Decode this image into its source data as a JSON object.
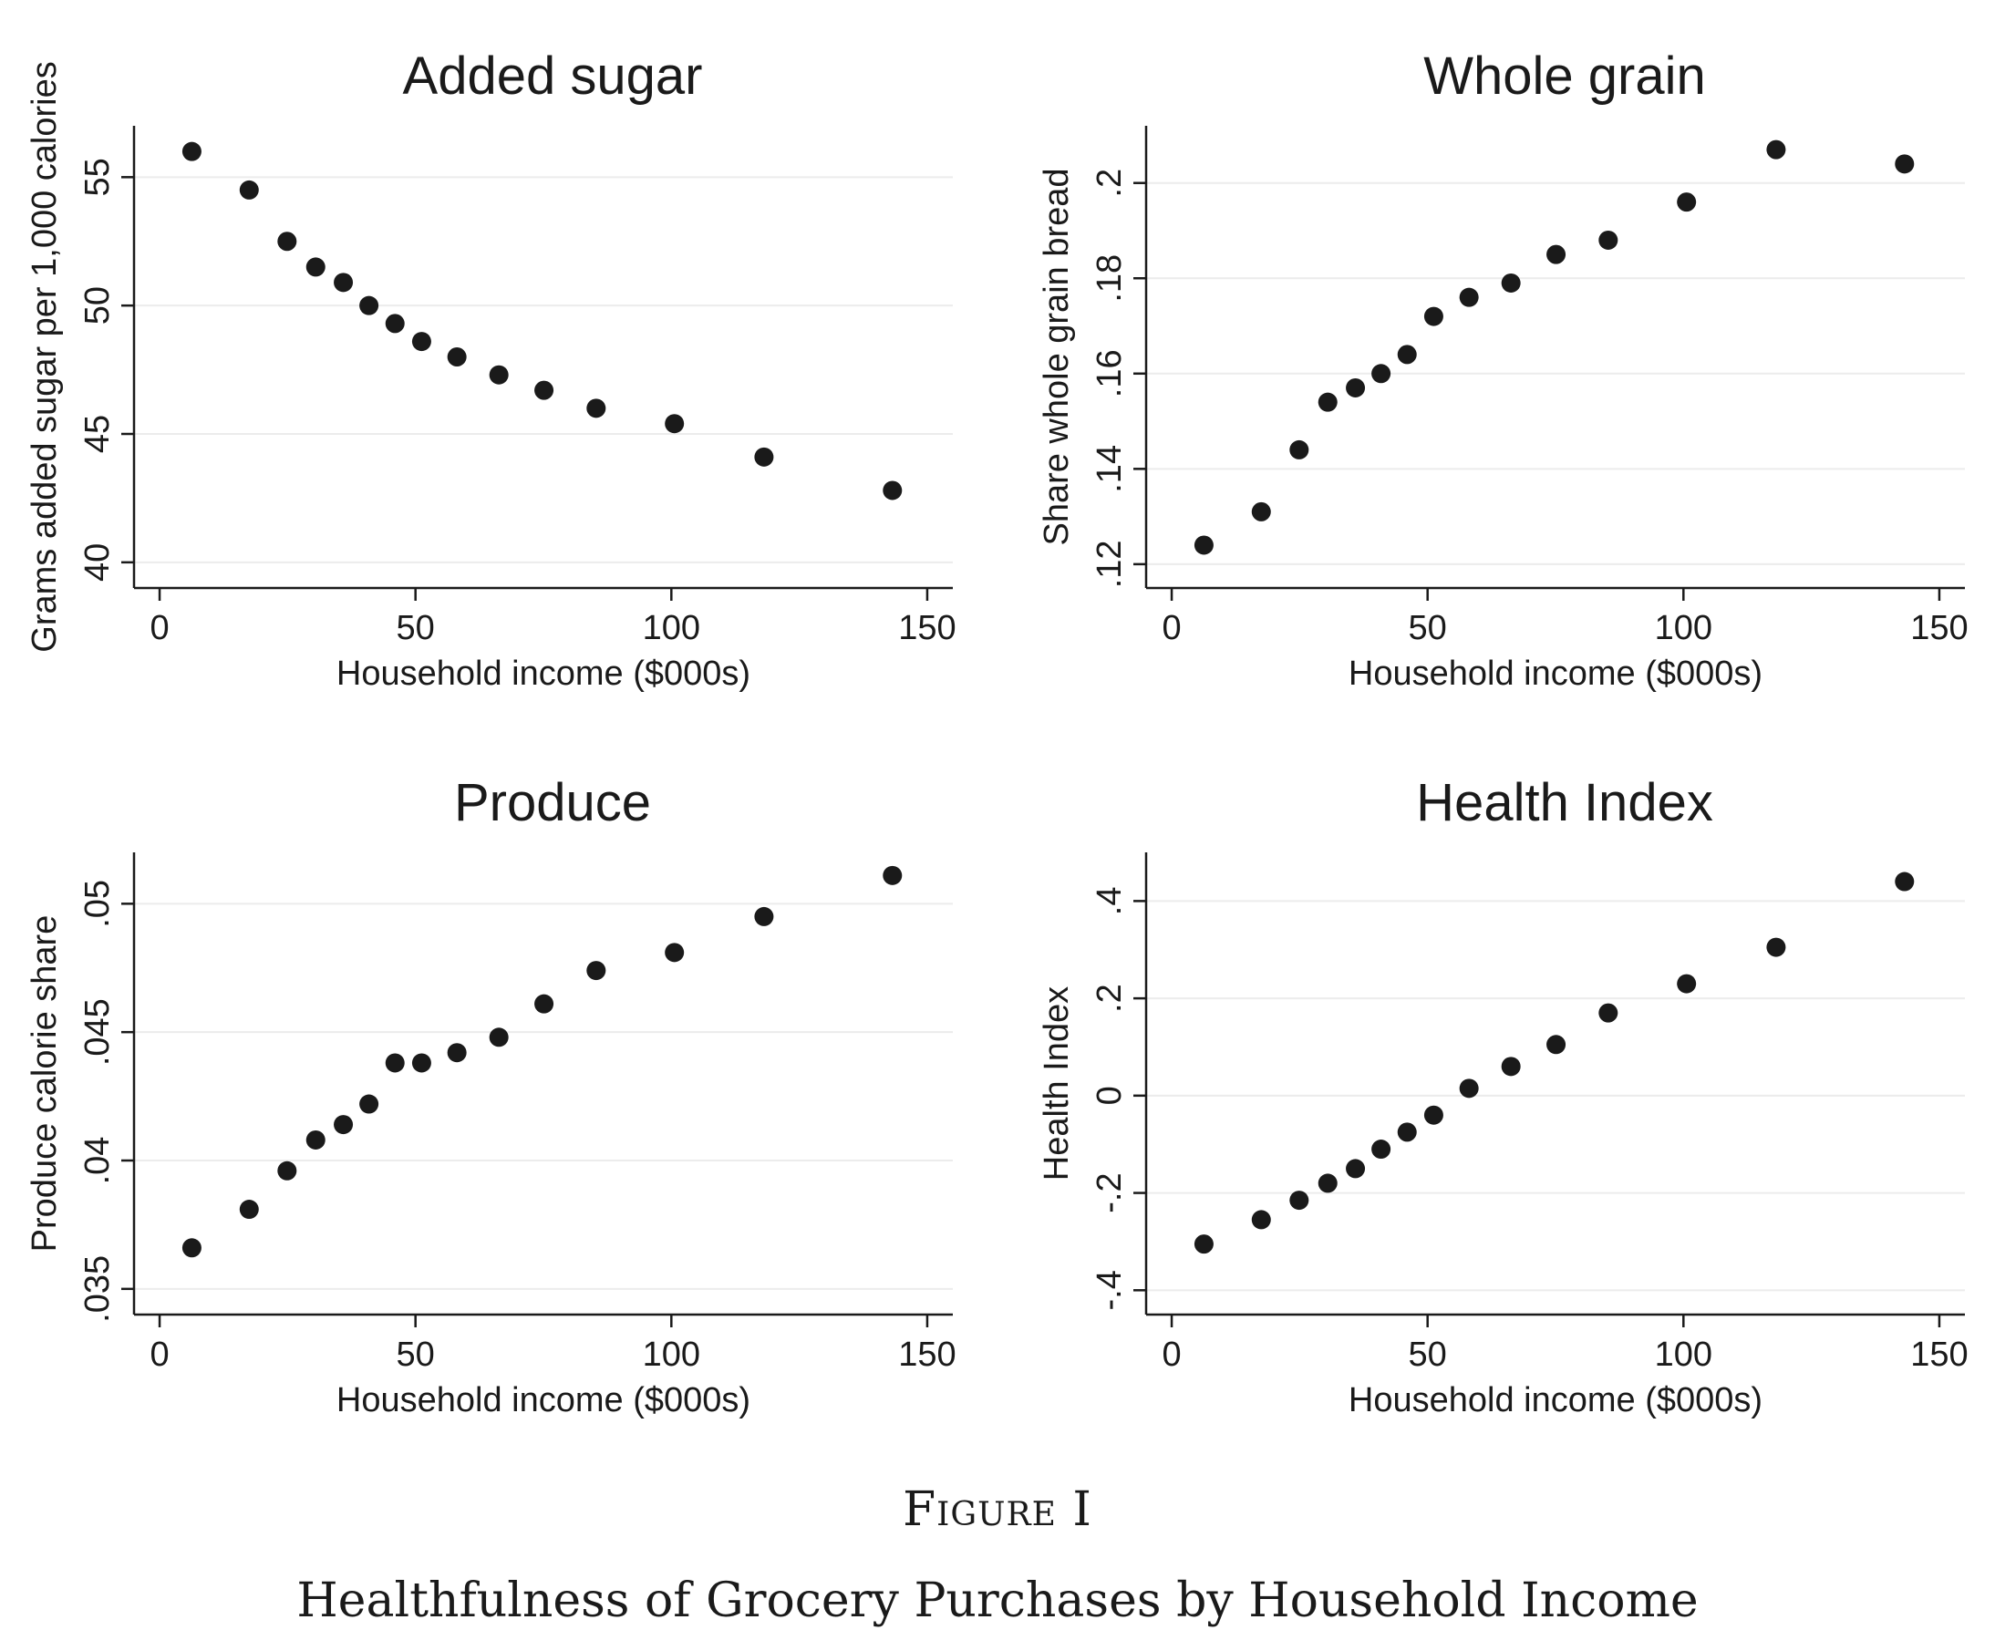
{
  "figure": {
    "label": "Figure I",
    "title": "Healthfulness of Grocery Purchases by Household Income"
  },
  "colors": {
    "marker": "#1a1a1a",
    "axis": "#1a1a1a",
    "grid": "#ececec",
    "text": "#1a1a1a"
  },
  "chart_data": [
    {
      "type": "scatter",
      "title": "Added sugar",
      "xlabel": "Household income ($000s)",
      "ylabel": "Grams added sugar per 1,000 calories",
      "xlim": [
        -5,
        155
      ],
      "ylim": [
        39,
        57
      ],
      "xticks": [
        0,
        50,
        100,
        150
      ],
      "xtick_labels": [
        "0",
        "50",
        "100",
        "150"
      ],
      "yticks": [
        40,
        45,
        50,
        55
      ],
      "ytick_labels": [
        "40",
        "45",
        "50",
        "55"
      ],
      "grid": true,
      "x": [
        6.3,
        17.5,
        24.9,
        30.5,
        35.9,
        40.9,
        46.0,
        51.2,
        58.1,
        66.3,
        75.1,
        85.3,
        100.6,
        118.1,
        143.2
      ],
      "y": [
        56.0,
        54.5,
        52.5,
        51.5,
        50.9,
        50.0,
        49.3,
        48.6,
        48.0,
        47.3,
        46.7,
        46.0,
        45.4,
        44.1,
        42.8
      ]
    },
    {
      "type": "scatter",
      "title": "Whole grain",
      "xlabel": "Household income ($000s)",
      "ylabel": "Share whole grain bread",
      "xlim": [
        -5,
        155
      ],
      "ylim": [
        0.115,
        0.212
      ],
      "xticks": [
        0,
        50,
        100,
        150
      ],
      "xtick_labels": [
        "0",
        "50",
        "100",
        "150"
      ],
      "yticks": [
        0.12,
        0.14,
        0.16,
        0.18,
        0.2
      ],
      "ytick_labels": [
        ".12",
        ".14",
        ".16",
        ".18",
        ".2"
      ],
      "grid": true,
      "x": [
        6.3,
        17.5,
        24.9,
        30.5,
        35.9,
        40.9,
        46.0,
        51.2,
        58.1,
        66.3,
        75.1,
        85.3,
        100.6,
        118.1,
        143.2
      ],
      "y": [
        0.124,
        0.131,
        0.144,
        0.154,
        0.157,
        0.16,
        0.164,
        0.172,
        0.176,
        0.179,
        0.185,
        0.188,
        0.196,
        0.207,
        0.204
      ]
    },
    {
      "type": "scatter",
      "title": "Produce",
      "xlabel": "Household income ($000s)",
      "ylabel": "Produce calorie share",
      "xlim": [
        -5,
        155
      ],
      "ylim": [
        0.034,
        0.052
      ],
      "xticks": [
        0,
        50,
        100,
        150
      ],
      "xtick_labels": [
        "0",
        "50",
        "100",
        "150"
      ],
      "yticks": [
        0.035,
        0.04,
        0.045,
        0.05
      ],
      "ytick_labels": [
        ".035",
        ".04",
        ".045",
        ".05"
      ],
      "grid": true,
      "x": [
        6.3,
        17.5,
        24.9,
        30.5,
        35.9,
        40.9,
        46.0,
        51.2,
        58.1,
        66.3,
        75.1,
        85.3,
        100.6,
        118.1,
        143.2
      ],
      "y": [
        0.0366,
        0.0381,
        0.0396,
        0.0408,
        0.0414,
        0.0422,
        0.0438,
        0.0438,
        0.0442,
        0.0448,
        0.0461,
        0.0474,
        0.0481,
        0.0495,
        0.0511
      ]
    },
    {
      "type": "scatter",
      "title": "Health Index",
      "xlabel": "Household income ($000s)",
      "ylabel": "Health Index",
      "xlim": [
        -5,
        155
      ],
      "ylim": [
        -0.45,
        0.5
      ],
      "xticks": [
        0,
        50,
        100,
        150
      ],
      "xtick_labels": [
        "0",
        "50",
        "100",
        "150"
      ],
      "yticks": [
        -0.4,
        -0.2,
        0,
        0.2,
        0.4
      ],
      "ytick_labels": [
        "-.4",
        "-.2",
        "0",
        ".2",
        ".4"
      ],
      "grid": true,
      "x": [
        6.3,
        17.5,
        24.9,
        30.5,
        35.9,
        40.9,
        46.0,
        51.2,
        58.1,
        66.3,
        75.1,
        85.3,
        100.6,
        118.1,
        143.2
      ],
      "y": [
        -0.305,
        -0.255,
        -0.215,
        -0.18,
        -0.15,
        -0.11,
        -0.075,
        -0.04,
        0.015,
        0.06,
        0.105,
        0.17,
        0.23,
        0.305,
        0.44
      ]
    }
  ]
}
